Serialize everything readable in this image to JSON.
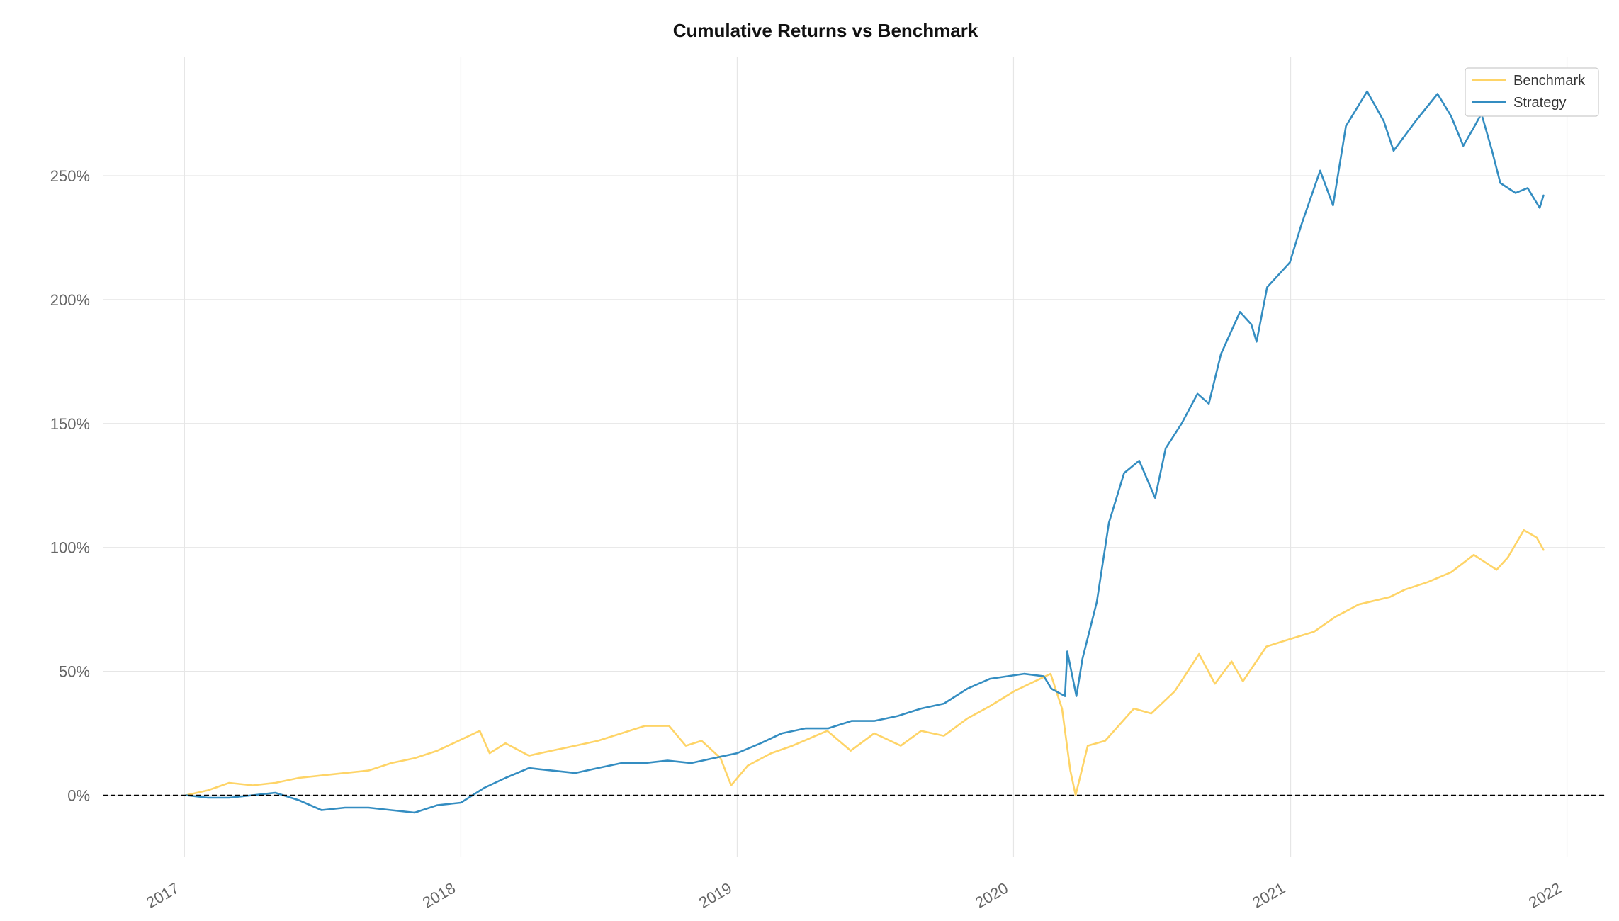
{
  "chart_data": {
    "type": "line",
    "title": "Cumulative Returns vs Benchmark",
    "subtitle": "",
    "xlabel": "",
    "ylabel": "",
    "x_ticks": [
      "2017",
      "2018",
      "2019",
      "2020",
      "2021",
      "2022"
    ],
    "y_ticks": [
      "0%",
      "50%",
      "100%",
      "150%",
      "200%",
      "250%"
    ],
    "xlim": [
      "2016-09-15",
      "2022-02-20"
    ],
    "ylim": [
      -25,
      298
    ],
    "grid": true,
    "legend_position": "top-right",
    "zero_line": "dashed",
    "colors": {
      "benchmark": "#fed467",
      "strategy": "#348dc1",
      "zero_line": "#000000"
    },
    "series": [
      {
        "name": "Benchmark",
        "color": "#fed467",
        "points": [
          [
            "2017-01-03",
            0
          ],
          [
            "2017-02-01",
            2
          ],
          [
            "2017-03-01",
            5
          ],
          [
            "2017-04-01",
            4
          ],
          [
            "2017-05-01",
            5
          ],
          [
            "2017-06-01",
            7
          ],
          [
            "2017-07-01",
            8
          ],
          [
            "2017-08-01",
            9
          ],
          [
            "2017-09-01",
            10
          ],
          [
            "2017-10-01",
            13
          ],
          [
            "2017-11-01",
            15
          ],
          [
            "2017-12-01",
            18
          ],
          [
            "2018-01-26",
            26
          ],
          [
            "2018-02-08",
            17
          ],
          [
            "2018-03-01",
            21
          ],
          [
            "2018-04-01",
            16
          ],
          [
            "2018-05-01",
            18
          ],
          [
            "2018-06-01",
            20
          ],
          [
            "2018-07-01",
            22
          ],
          [
            "2018-08-01",
            25
          ],
          [
            "2018-09-01",
            28
          ],
          [
            "2018-10-03",
            28
          ],
          [
            "2018-10-25",
            20
          ],
          [
            "2018-11-15",
            22
          ],
          [
            "2018-12-10",
            15
          ],
          [
            "2018-12-24",
            4
          ],
          [
            "2019-01-15",
            12
          ],
          [
            "2019-02-15",
            17
          ],
          [
            "2019-03-15",
            20
          ],
          [
            "2019-04-30",
            26
          ],
          [
            "2019-05-31",
            18
          ],
          [
            "2019-07-01",
            25
          ],
          [
            "2019-08-05",
            20
          ],
          [
            "2019-09-01",
            26
          ],
          [
            "2019-10-01",
            24
          ],
          [
            "2019-11-01",
            31
          ],
          [
            "2019-12-01",
            36
          ],
          [
            "2020-01-02",
            42
          ],
          [
            "2020-02-19",
            49
          ],
          [
            "2020-03-05",
            35
          ],
          [
            "2020-03-16",
            10
          ],
          [
            "2020-03-23",
            0
          ],
          [
            "2020-04-08",
            20
          ],
          [
            "2020-05-01",
            22
          ],
          [
            "2020-06-08",
            35
          ],
          [
            "2020-07-01",
            33
          ],
          [
            "2020-08-01",
            42
          ],
          [
            "2020-09-02",
            57
          ],
          [
            "2020-09-23",
            45
          ],
          [
            "2020-10-15",
            54
          ],
          [
            "2020-10-30",
            46
          ],
          [
            "2020-11-30",
            60
          ],
          [
            "2020-12-31",
            63
          ],
          [
            "2021-02-01",
            66
          ],
          [
            "2021-03-01",
            72
          ],
          [
            "2021-04-01",
            77
          ],
          [
            "2021-05-12",
            80
          ],
          [
            "2021-06-01",
            83
          ],
          [
            "2021-07-01",
            86
          ],
          [
            "2021-08-01",
            90
          ],
          [
            "2021-08-31",
            97
          ],
          [
            "2021-09-30",
            91
          ],
          [
            "2021-10-15",
            96
          ],
          [
            "2021-11-05",
            107
          ],
          [
            "2021-11-22",
            104
          ],
          [
            "2021-12-01",
            99
          ]
        ]
      },
      {
        "name": "Strategy",
        "color": "#348dc1",
        "points": [
          [
            "2017-01-03",
            0
          ],
          [
            "2017-02-01",
            -1
          ],
          [
            "2017-03-01",
            -1
          ],
          [
            "2017-04-01",
            0
          ],
          [
            "2017-05-01",
            1
          ],
          [
            "2017-06-01",
            -2
          ],
          [
            "2017-07-01",
            -6
          ],
          [
            "2017-08-01",
            -5
          ],
          [
            "2017-09-01",
            -5
          ],
          [
            "2017-10-01",
            -6
          ],
          [
            "2017-11-01",
            -7
          ],
          [
            "2017-12-01",
            -4
          ],
          [
            "2018-01-01",
            -3
          ],
          [
            "2018-02-01",
            3
          ],
          [
            "2018-03-01",
            7
          ],
          [
            "2018-04-01",
            11
          ],
          [
            "2018-05-01",
            10
          ],
          [
            "2018-06-01",
            9
          ],
          [
            "2018-07-01",
            11
          ],
          [
            "2018-08-01",
            13
          ],
          [
            "2018-09-01",
            13
          ],
          [
            "2018-10-01",
            14
          ],
          [
            "2018-11-01",
            13
          ],
          [
            "2018-12-01",
            15
          ],
          [
            "2019-01-01",
            17
          ],
          [
            "2019-02-01",
            21
          ],
          [
            "2019-03-01",
            25
          ],
          [
            "2019-04-01",
            27
          ],
          [
            "2019-05-01",
            27
          ],
          [
            "2019-06-01",
            30
          ],
          [
            "2019-07-01",
            30
          ],
          [
            "2019-08-01",
            32
          ],
          [
            "2019-09-01",
            35
          ],
          [
            "2019-10-01",
            37
          ],
          [
            "2019-11-01",
            43
          ],
          [
            "2019-12-01",
            47
          ],
          [
            "2020-01-15",
            49
          ],
          [
            "2020-02-10",
            48
          ],
          [
            "2020-02-20",
            43
          ],
          [
            "2020-03-09",
            40
          ],
          [
            "2020-03-12",
            58
          ],
          [
            "2020-03-24",
            40
          ],
          [
            "2020-04-01",
            55
          ],
          [
            "2020-04-20",
            78
          ],
          [
            "2020-05-06",
            110
          ],
          [
            "2020-05-26",
            130
          ],
          [
            "2020-06-15",
            135
          ],
          [
            "2020-07-06",
            120
          ],
          [
            "2020-07-20",
            140
          ],
          [
            "2020-08-10",
            150
          ],
          [
            "2020-08-31",
            162
          ],
          [
            "2020-09-15",
            158
          ],
          [
            "2020-10-01",
            178
          ],
          [
            "2020-10-26",
            195
          ],
          [
            "2020-11-10",
            190
          ],
          [
            "2020-11-17",
            183
          ],
          [
            "2020-12-01",
            205
          ],
          [
            "2020-12-31",
            215
          ],
          [
            "2021-01-15",
            230
          ],
          [
            "2021-02-09",
            252
          ],
          [
            "2021-02-26",
            238
          ],
          [
            "2021-03-15",
            270
          ],
          [
            "2021-04-12",
            284
          ],
          [
            "2021-05-04",
            272
          ],
          [
            "2021-05-17",
            260
          ],
          [
            "2021-06-15",
            272
          ],
          [
            "2021-07-14",
            283
          ],
          [
            "2021-08-01",
            274
          ],
          [
            "2021-08-17",
            262
          ],
          [
            "2021-09-01",
            270
          ],
          [
            "2021-09-10",
            275
          ],
          [
            "2021-09-24",
            260
          ],
          [
            "2021-10-05",
            247
          ],
          [
            "2021-10-25",
            243
          ],
          [
            "2021-11-10",
            245
          ],
          [
            "2021-11-26",
            237
          ],
          [
            "2021-12-01",
            242
          ]
        ]
      }
    ]
  }
}
